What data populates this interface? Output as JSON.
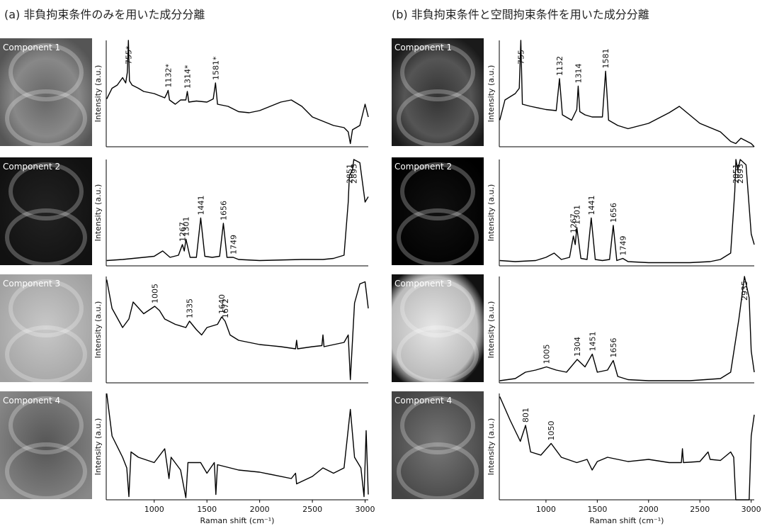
{
  "panels": [
    {
      "title": "(a) 非負拘束条件のみを用いた成分分離"
    },
    {
      "title": "(b) 非負拘束条件と空間拘束条件を用いた成分分離"
    }
  ],
  "chart_data": [
    {
      "type": "line",
      "image_label": "Component 1",
      "ylabel": "Intensity (a.u.)",
      "color": "#000000",
      "xlim": [
        545,
        3030
      ],
      "ylim": [
        0,
        100
      ],
      "x": [
        550,
        600,
        650,
        700,
        730,
        745,
        755,
        765,
        790,
        850,
        900,
        1000,
        1100,
        1120,
        1132,
        1145,
        1200,
        1250,
        1300,
        1314,
        1328,
        1400,
        1500,
        1560,
        1581,
        1600,
        1700,
        1800,
        1900,
        2000,
        2100,
        2200,
        2300,
        2400,
        2500,
        2600,
        2700,
        2800,
        2840,
        2860,
        2880,
        2950,
        3000,
        3030
      ],
      "values": [
        45,
        55,
        58,
        65,
        60,
        70,
        100,
        62,
        58,
        55,
        52,
        50,
        46,
        50,
        53,
        44,
        40,
        44,
        44,
        52,
        42,
        43,
        42,
        45,
        60,
        40,
        38,
        33,
        32,
        34,
        38,
        42,
        44,
        38,
        28,
        24,
        20,
        18,
        14,
        3,
        16,
        20,
        40,
        28
      ],
      "annotations": [
        {
          "value": 755,
          "label": "755*"
        },
        {
          "value": 1132,
          "label": "1132*"
        },
        {
          "value": 1314,
          "label": "1314*"
        },
        {
          "value": 1581,
          "label": "1581*"
        }
      ]
    },
    {
      "type": "line",
      "image_label": "Component 2",
      "ylabel": "Intensity (a.u.)",
      "color": "#000000",
      "xlim": [
        545,
        3030
      ],
      "ylim": [
        0,
        100
      ],
      "x": [
        550,
        700,
        900,
        1000,
        1080,
        1150,
        1230,
        1267,
        1285,
        1301,
        1340,
        1400,
        1441,
        1480,
        1550,
        1620,
        1656,
        1690,
        1749,
        1800,
        2000,
        2400,
        2600,
        2700,
        2800,
        2840,
        2851,
        2880,
        2893,
        2950,
        3000,
        3030
      ],
      "values": [
        5,
        6,
        8,
        9,
        14,
        8,
        10,
        20,
        14,
        25,
        8,
        8,
        45,
        9,
        8,
        9,
        40,
        8,
        8,
        6,
        5,
        6,
        6,
        7,
        10,
        60,
        85,
        90,
        100,
        97,
        60,
        65
      ],
      "annotations": [
        1267,
        1301,
        1441,
        1656,
        1749,
        2851,
        2893
      ]
    },
    {
      "type": "line",
      "image_label": "Component 3",
      "ylabel": "Intensity (a.u.)",
      "color": "#000000",
      "xlim": [
        545,
        3030
      ],
      "ylim": [
        0,
        100
      ],
      "x": [
        550,
        600,
        700,
        760,
        800,
        900,
        1005,
        1050,
        1100,
        1200,
        1300,
        1335,
        1400,
        1450,
        1500,
        1600,
        1640,
        1672,
        1720,
        1800,
        2000,
        2200,
        2340,
        2350,
        2360,
        2500,
        2590,
        2600,
        2610,
        2800,
        2840,
        2860,
        2900,
        2950,
        3000,
        3030
      ],
      "values": [
        97,
        70,
        52,
        60,
        76,
        65,
        72,
        68,
        60,
        55,
        52,
        58,
        50,
        45,
        52,
        55,
        62,
        58,
        45,
        40,
        36,
        34,
        32,
        40,
        32,
        34,
        35,
        45,
        34,
        38,
        45,
        3,
        75,
        93,
        95,
        70
      ],
      "annotations": [
        1005,
        1335,
        1640,
        1672
      ]
    },
    {
      "type": "line",
      "image_label": "Component 4",
      "ylabel": "Intensity (a.u.)",
      "color": "#000000",
      "xlim": [
        545,
        3030
      ],
      "ylim": [
        0,
        100
      ],
      "xlabel": "Raman shift (cm⁻¹)",
      "xticks": [
        1000,
        1500,
        2000,
        2500,
        3000
      ],
      "x": [
        550,
        600,
        700,
        740,
        760,
        780,
        850,
        1000,
        1100,
        1140,
        1160,
        1250,
        1300,
        1320,
        1440,
        1500,
        1570,
        1585,
        1600,
        1800,
        2000,
        2300,
        2340,
        2350,
        2500,
        2600,
        2700,
        2800,
        2860,
        2900,
        2960,
        2990,
        3010,
        3030
      ],
      "values": [
        100,
        60,
        40,
        30,
        3,
        45,
        40,
        35,
        48,
        20,
        40,
        28,
        2,
        35,
        35,
        25,
        35,
        5,
        33,
        28,
        26,
        20,
        25,
        15,
        22,
        30,
        25,
        30,
        85,
        40,
        30,
        3,
        65,
        5
      ]
    },
    {
      "type": "line",
      "image_label": "Component 1",
      "ylabel": "Intensity (a.u.)",
      "color": "#000000",
      "xlim": [
        545,
        3030
      ],
      "ylim": [
        0,
        100
      ],
      "x": [
        550,
        600,
        700,
        740,
        755,
        770,
        850,
        1000,
        1100,
        1132,
        1160,
        1250,
        1300,
        1314,
        1330,
        1380,
        1450,
        1550,
        1581,
        1610,
        1700,
        1800,
        2000,
        2200,
        2300,
        2400,
        2500,
        2700,
        2800,
        2850,
        2900,
        3000,
        3030
      ],
      "values": [
        25,
        44,
        50,
        55,
        100,
        40,
        38,
        35,
        34,
        64,
        30,
        25,
        35,
        57,
        33,
        30,
        28,
        28,
        71,
        25,
        20,
        17,
        22,
        32,
        38,
        30,
        22,
        14,
        5,
        3,
        8,
        3,
        0
      ],
      "annotations": [
        755,
        1132,
        1314,
        1581
      ]
    },
    {
      "type": "line",
      "image_label": "Component 2",
      "ylabel": "Intensity (a.u.)",
      "color": "#000000",
      "xlim": [
        545,
        3030
      ],
      "ylim": [
        0,
        100
      ],
      "x": [
        550,
        700,
        900,
        1000,
        1080,
        1150,
        1230,
        1267,
        1285,
        1301,
        1340,
        1400,
        1441,
        1480,
        1550,
        1620,
        1656,
        1690,
        1749,
        1800,
        2000,
        2400,
        2600,
        2700,
        2800,
        2840,
        2851,
        2870,
        2893,
        2950,
        3000,
        3030
      ],
      "values": [
        5,
        4,
        5,
        8,
        12,
        6,
        8,
        28,
        20,
        36,
        7,
        6,
        45,
        6,
        5,
        6,
        38,
        5,
        7,
        4,
        3,
        3,
        4,
        6,
        12,
        70,
        100,
        90,
        100,
        95,
        30,
        20
      ],
      "annotations": [
        1267,
        1301,
        1441,
        1656,
        1749,
        2851,
        2893
      ]
    },
    {
      "type": "line",
      "image_label": "Component 3",
      "ylabel": "Intensity (a.u.)",
      "color": "#000000",
      "xlim": [
        545,
        3030
      ],
      "ylim": [
        0,
        100
      ],
      "x": [
        550,
        700,
        800,
        900,
        1005,
        1100,
        1200,
        1304,
        1380,
        1451,
        1500,
        1600,
        1656,
        1700,
        1800,
        2000,
        2400,
        2700,
        2800,
        2880,
        2935,
        2980,
        3000,
        3030
      ],
      "values": [
        2,
        4,
        10,
        12,
        15,
        12,
        10,
        22,
        15,
        27,
        10,
        12,
        21,
        6,
        3,
        2,
        2,
        4,
        10,
        60,
        100,
        80,
        30,
        10
      ],
      "annotations": [
        1005,
        1304,
        1451,
        1656,
        2935
      ]
    },
    {
      "type": "line",
      "image_label": "Component 4",
      "ylabel": "Intensity (a.u.)",
      "color": "#000000",
      "xlim": [
        545,
        3030
      ],
      "ylim": [
        0,
        100
      ],
      "xlabel": "Raman shift (cm⁻¹)",
      "xticks": [
        1000,
        1500,
        2000,
        2500,
        3000
      ],
      "x": [
        550,
        650,
        750,
        801,
        850,
        950,
        1050,
        1150,
        1300,
        1400,
        1450,
        1500,
        1600,
        1800,
        2000,
        2200,
        2320,
        2330,
        2340,
        2500,
        2580,
        2600,
        2700,
        2800,
        2830,
        2850,
        2950,
        2980,
        3000,
        3030
      ],
      "values": [
        97,
        75,
        55,
        70,
        45,
        42,
        53,
        40,
        35,
        38,
        28,
        36,
        40,
        36,
        38,
        35,
        35,
        48,
        35,
        36,
        45,
        38,
        37,
        45,
        40,
        0,
        0,
        0,
        60,
        80
      ],
      "annotations": [
        801,
        1050
      ]
    }
  ]
}
